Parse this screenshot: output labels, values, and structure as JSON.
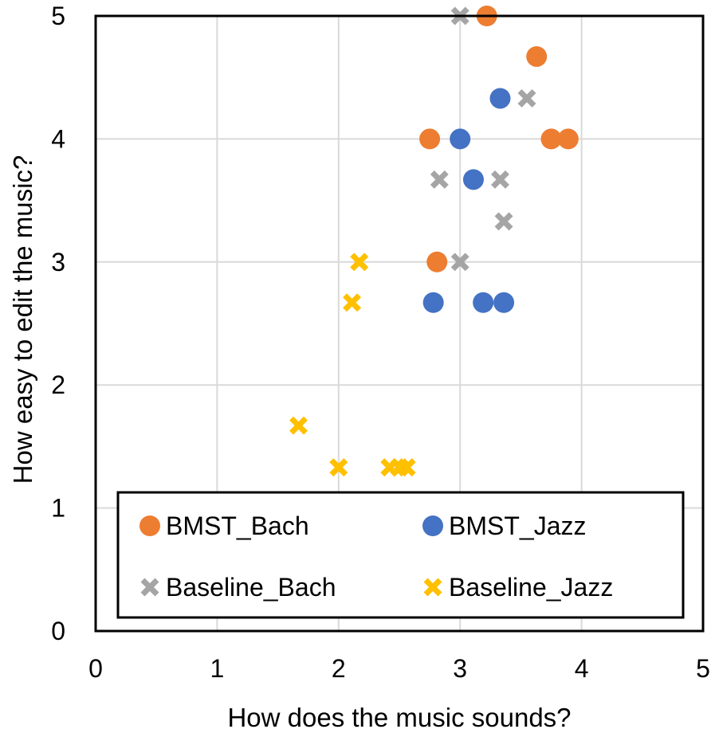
{
  "chart_data": {
    "type": "scatter",
    "xlabel": "How does the music sounds?",
    "ylabel": "How easy to edit the music?",
    "xlim": [
      0,
      5
    ],
    "ylim": [
      0,
      5
    ],
    "x_ticks": [
      "0",
      "1",
      "2",
      "3",
      "4",
      "5"
    ],
    "y_ticks": [
      "0",
      "1",
      "2",
      "3",
      "4",
      "5"
    ],
    "grid": true,
    "legend_position": "bottom",
    "series": [
      {
        "name": "BMST_Bach",
        "marker": "circle",
        "color": "#ED7D31",
        "points": [
          {
            "x": 3.22,
            "y": 5.0
          },
          {
            "x": 3.63,
            "y": 4.67
          },
          {
            "x": 2.75,
            "y": 4.0
          },
          {
            "x": 3.75,
            "y": 4.0
          },
          {
            "x": 3.89,
            "y": 4.0
          },
          {
            "x": 2.81,
            "y": 3.0
          }
        ]
      },
      {
        "name": "BMST_Jazz",
        "marker": "circle",
        "color": "#4472C4",
        "points": [
          {
            "x": 3.33,
            "y": 4.33
          },
          {
            "x": 3.0,
            "y": 4.0
          },
          {
            "x": 3.11,
            "y": 3.67
          },
          {
            "x": 2.78,
            "y": 2.67
          },
          {
            "x": 3.19,
            "y": 2.67
          },
          {
            "x": 3.36,
            "y": 2.67
          }
        ]
      },
      {
        "name": "Baseline_Bach",
        "marker": "x",
        "color": "#A5A5A5",
        "points": [
          {
            "x": 3.0,
            "y": 5.0
          },
          {
            "x": 3.55,
            "y": 4.33
          },
          {
            "x": 2.83,
            "y": 3.67
          },
          {
            "x": 3.33,
            "y": 3.67
          },
          {
            "x": 3.36,
            "y": 3.33
          },
          {
            "x": 3.0,
            "y": 3.0
          }
        ]
      },
      {
        "name": "Baseline_Jazz",
        "marker": "x",
        "color": "#FFC000",
        "points": [
          {
            "x": 2.17,
            "y": 3.0
          },
          {
            "x": 2.11,
            "y": 2.67
          },
          {
            "x": 1.67,
            "y": 1.67
          },
          {
            "x": 2.0,
            "y": 1.33
          },
          {
            "x": 2.42,
            "y": 1.33
          },
          {
            "x": 2.5,
            "y": 1.33
          },
          {
            "x": 2.56,
            "y": 1.33
          }
        ]
      }
    ]
  }
}
